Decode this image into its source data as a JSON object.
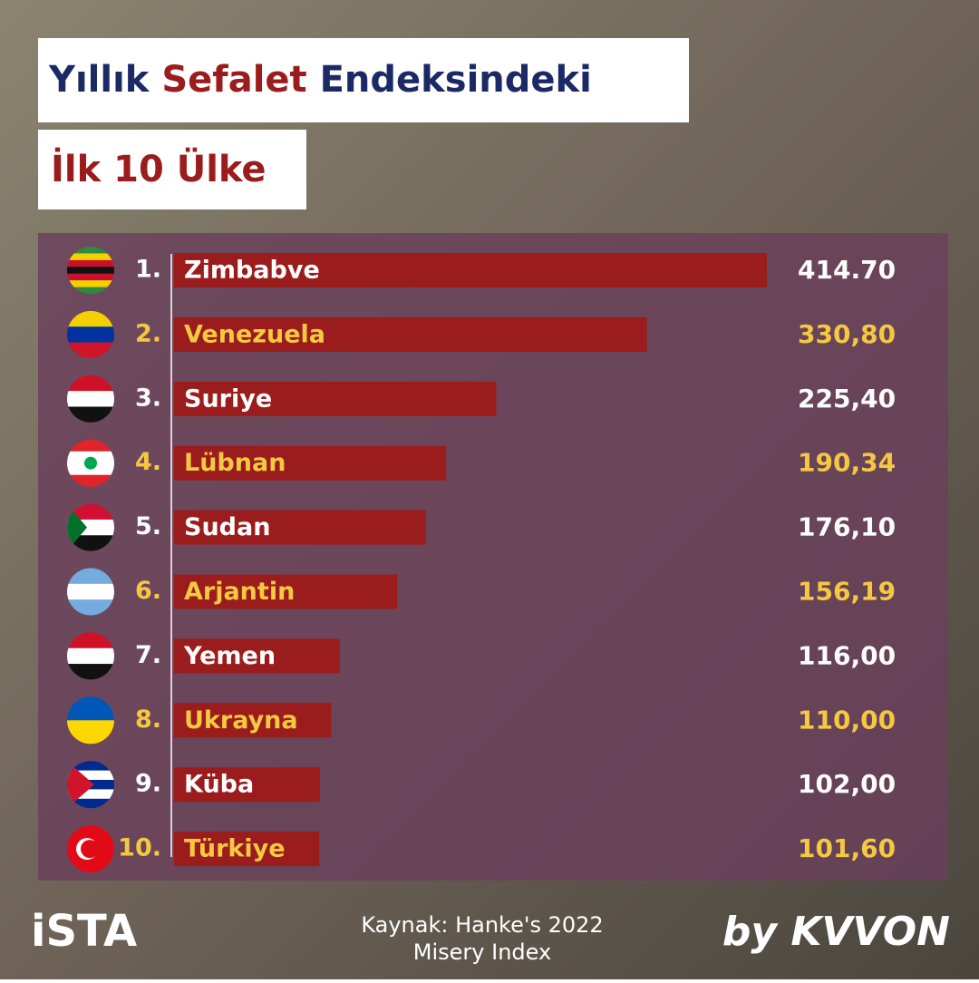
{
  "chart_data": {
    "type": "bar",
    "title": {
      "part1": "Yıllık",
      "part2": "Sefalet",
      "part3": "Endeksindeki",
      "line2": "İlk 10 Ülke"
    },
    "ranks": [
      "1.",
      "2.",
      "3.",
      "4.",
      "5.",
      "6.",
      "7.",
      "8.",
      "9.",
      "10."
    ],
    "categories": [
      "Zimbabve",
      "Venezuela",
      "Suriye",
      "Lübnan",
      "Sudan",
      "Arjantin",
      "Yemen",
      "Ukrayna",
      "Küba",
      "Türkiye"
    ],
    "values": [
      414.7,
      330.8,
      225.4,
      190.34,
      176.1,
      156.19,
      116.0,
      110.0,
      102.0,
      101.6
    ],
    "value_labels": [
      "414.70",
      "330,80",
      "225,40",
      "190,34",
      "176,10",
      "156,19",
      "116,00",
      "110,00",
      "102,00",
      "101,60"
    ],
    "color": "#9b1c1c",
    "label_colors": [
      "#ffffff",
      "#f5c842"
    ],
    "source": [
      "Kaynak: Hanke's 2022",
      "Misery Index"
    ],
    "logos": [
      "iSTA",
      "by KVVON"
    ]
  }
}
